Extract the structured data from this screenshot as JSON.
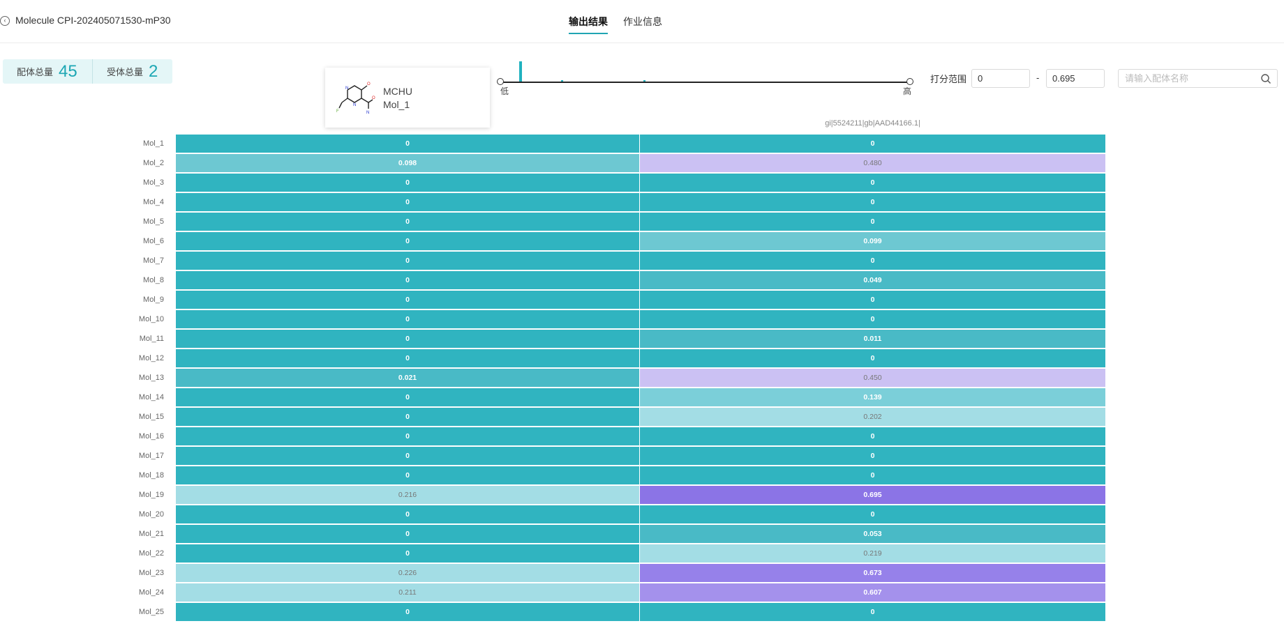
{
  "header": {
    "back_icon": "back-icon",
    "title": "Molecule CPI-202405071530-mP30",
    "tabs": [
      {
        "label": "输出结果",
        "active": true
      },
      {
        "label": "作业信息",
        "active": false
      }
    ]
  },
  "stats": {
    "ligand_label": "配体总量",
    "ligand_count": "45",
    "receptor_label": "受体总量",
    "receptor_count": "2"
  },
  "tooltip": {
    "name": "MCHU",
    "mol_id": "Mol_1"
  },
  "histogram": {
    "low_label": "低",
    "high_label": "高"
  },
  "filter": {
    "range_label": "打分范围",
    "min_value": "0",
    "max_value": "0.695",
    "dash": "-",
    "search_placeholder": "请输入配体名称",
    "search_icon": "search-icon"
  },
  "colors": {
    "accent": "#21a8b5",
    "teal_dark": "#30b4c0",
    "purple_max": "#8b74e6"
  },
  "chart_data": {
    "type": "heatmap",
    "columns": [
      "",
      "gi|5524211|gb|AAD44166.1|"
    ],
    "rows": [
      "Mol_1",
      "Mol_2",
      "Mol_3",
      "Mol_4",
      "Mol_5",
      "Mol_6",
      "Mol_7",
      "Mol_8",
      "Mol_9",
      "Mol_10",
      "Mol_11",
      "Mol_12",
      "Mol_13",
      "Mol_14",
      "Mol_15",
      "Mol_16",
      "Mol_17",
      "Mol_18",
      "Mol_19",
      "Mol_20",
      "Mol_21",
      "Mol_22",
      "Mol_23",
      "Mol_24",
      "Mol_25"
    ],
    "values": [
      [
        "0",
        "0"
      ],
      [
        "0.098",
        "0.480"
      ],
      [
        "0",
        "0"
      ],
      [
        "0",
        "0"
      ],
      [
        "0",
        "0"
      ],
      [
        "0",
        "0.099"
      ],
      [
        "0",
        "0"
      ],
      [
        "0",
        "0.049"
      ],
      [
        "0",
        "0"
      ],
      [
        "0",
        "0"
      ],
      [
        "0",
        "0.011"
      ],
      [
        "0",
        "0"
      ],
      [
        "0.021",
        "0.450"
      ],
      [
        "0",
        "0.139"
      ],
      [
        "0",
        "0.202"
      ],
      [
        "0",
        "0"
      ],
      [
        "0",
        "0"
      ],
      [
        "0",
        "0"
      ],
      [
        "0.216",
        "0.695"
      ],
      [
        "0",
        "0"
      ],
      [
        "0",
        "0.053"
      ],
      [
        "0",
        "0.219"
      ],
      [
        "0.226",
        "0.673"
      ],
      [
        "0.211",
        "0.607"
      ],
      [
        "0",
        "0"
      ]
    ],
    "range": [
      0,
      0.695
    ]
  }
}
